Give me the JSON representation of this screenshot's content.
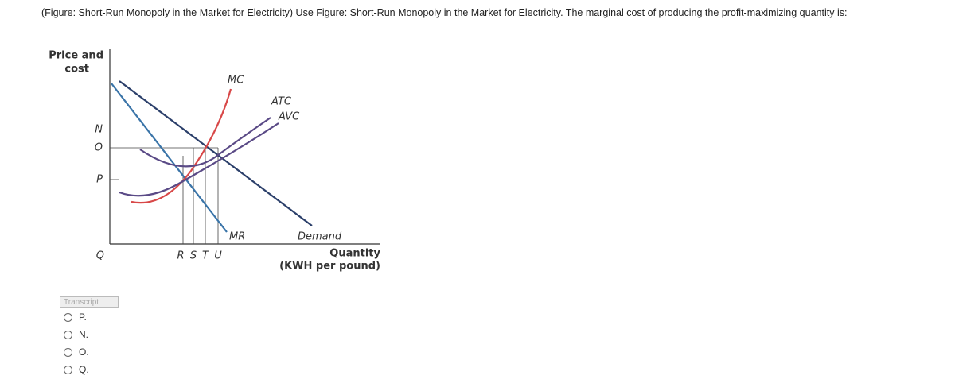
{
  "question": {
    "text": "(Figure: Short-Run Monopoly in the Market for Electricity) Use Figure: Short-Run Monopoly in the Market for Electricity. The marginal cost of producing the profit-maximizing quantity is:"
  },
  "figure": {
    "y_axis_label": [
      "Price and",
      "cost"
    ],
    "price_labels": [
      "N",
      "O",
      "P",
      "Q"
    ],
    "curve_labels": {
      "mc": "MC",
      "atc": "ATC",
      "avc": "AVC",
      "mr": "MR",
      "demand": "Demand"
    },
    "quantity_labels": [
      "R",
      "S",
      "T",
      "U"
    ],
    "x_axis_label": [
      "Quantity",
      "(KWH per pound)"
    ]
  },
  "transcript_button": "Transcript",
  "options": [
    "P.",
    "N.",
    "O.",
    "Q."
  ]
}
